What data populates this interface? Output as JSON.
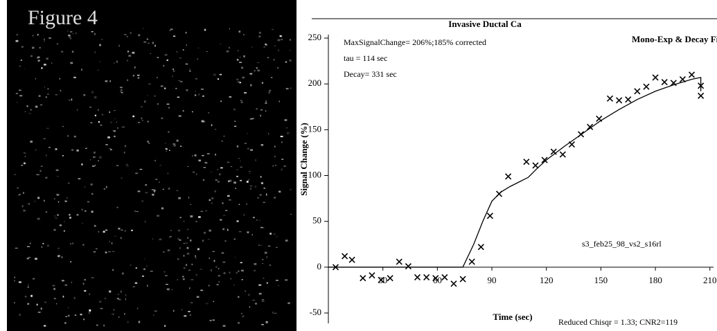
{
  "figure_label": "Figure 4",
  "chart_data": {
    "type": "scatter",
    "title": "Invasive Ductal Ca",
    "subtitle": "Mono-Exp & Decay Fit",
    "x_label": "Time (sec)",
    "y_label": "Signal Change (%)",
    "annotations": [
      "MaxSignalChange= 206%;185% corrected",
      "tau = 114 sec",
      "Decay= 331 sec",
      "s3_feb25_98_vs2_s16rl",
      "Reduced Chisqr = 1.33;  CNR2=119"
    ],
    "xlim": [
      0,
      212
    ],
    "ylim": [
      -50,
      250
    ],
    "xticks": [
      30,
      60,
      90,
      120,
      150,
      180,
      210
    ],
    "yticks": [
      -50,
      0,
      50,
      100,
      150,
      200,
      250
    ],
    "series": [
      {
        "type": "scatter",
        "marker": "x",
        "color": "#000000",
        "x": [
          4,
          9,
          13,
          19,
          24,
          29,
          34,
          39,
          44,
          49,
          54,
          59,
          64,
          69,
          74,
          79,
          84,
          89,
          94,
          99,
          109,
          114,
          119,
          124,
          129,
          134,
          139,
          144,
          149,
          155,
          160,
          165,
          170,
          175,
          180,
          185,
          190,
          195,
          200,
          205,
          205
        ],
        "values": [
          0,
          12,
          8,
          -12,
          -9,
          -14,
          -12,
          6,
          1,
          -11,
          -11,
          -12,
          -11,
          -18,
          -13,
          6,
          22,
          56,
          80,
          99,
          115,
          111,
          117,
          126,
          123,
          134,
          145,
          153,
          162,
          184,
          182,
          183,
          192,
          197,
          207,
          202,
          201,
          205,
          210,
          198,
          187
        ]
      },
      {
        "type": "line",
        "color": "#000000",
        "x": [
          0,
          74,
          80,
          85,
          90,
          95,
          100,
          105,
          110,
          115,
          120,
          130,
          140,
          150,
          160,
          170,
          180,
          190,
          200,
          205,
          205
        ],
        "values": [
          0,
          0,
          25,
          50,
          72,
          82,
          88,
          93,
          98,
          108,
          117,
          132,
          146,
          160,
          172,
          183,
          192,
          199,
          205,
          207,
          192
        ]
      }
    ]
  }
}
